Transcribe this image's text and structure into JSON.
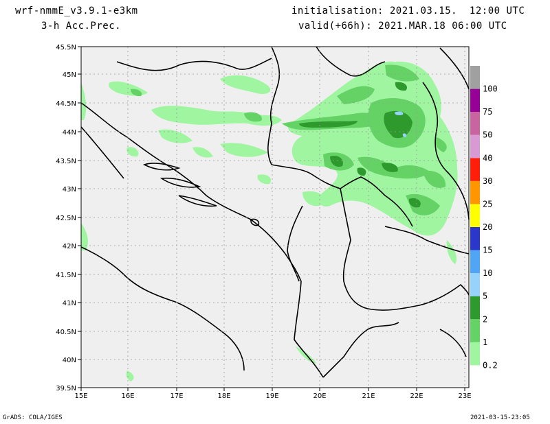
{
  "header": {
    "model": "wrf-nmmE_v3.9.1-e3km",
    "field": "3-h Acc.Prec.",
    "init": "initialisation: 2021.03.15.  12:00 UTC",
    "valid": "valid(+66h): 2021.MAR.18 06:00 UTC"
  },
  "footer": {
    "credit": "GrADS: COLA/IGES",
    "timestamp": "2021-03-15-23:05"
  },
  "map": {
    "lon_range": [
      15,
      23.25
    ],
    "lat_range": [
      39.5,
      45.5
    ],
    "lon_ticks": [
      "15E",
      "16E",
      "17E",
      "18E",
      "19E",
      "20E",
      "21E",
      "22E",
      "23E"
    ],
    "lat_ticks": [
      "45.5N",
      "45N",
      "44.5N",
      "44N",
      "43.5N",
      "43N",
      "42.5N",
      "42N",
      "41.5N",
      "41N",
      "40.5N",
      "40N",
      "39.5N"
    ],
    "background_color": "#efefef"
  },
  "colorbar": {
    "levels": [
      "0.2",
      "1",
      "2",
      "5",
      "10",
      "15",
      "20",
      "25",
      "30",
      "40",
      "50",
      "75",
      "100"
    ],
    "colors": [
      "#a0f5a0",
      "#64d264",
      "#2e9a2e",
      "#96d2fa",
      "#50a5f5",
      "#2a37c8",
      "#ffff00",
      "#ff9600",
      "#ff1e0a",
      "#d79ad2",
      "#c864a0",
      "#960096",
      "#a0a0a0"
    ]
  }
}
